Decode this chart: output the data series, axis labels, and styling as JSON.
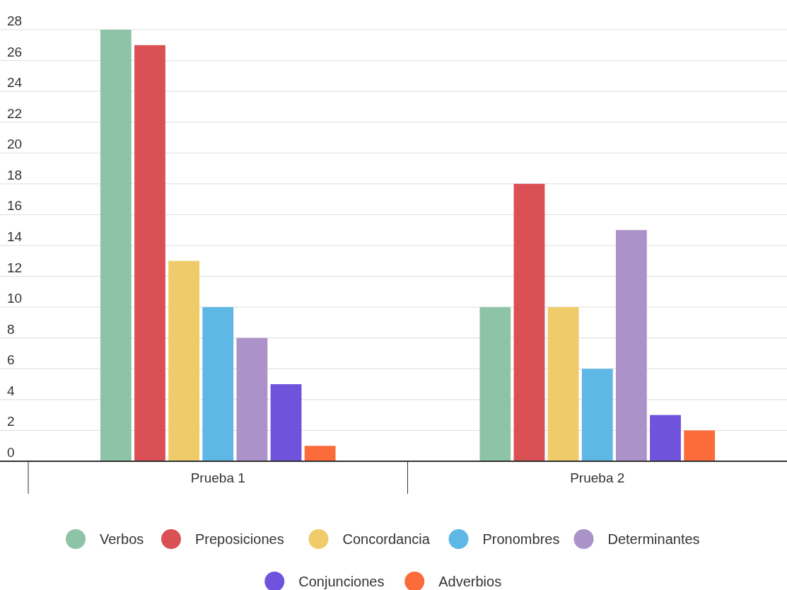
{
  "chart_data": {
    "type": "bar",
    "categories": [
      "Prueba 1",
      "Prueba 2"
    ],
    "series": [
      {
        "name": "Verbos",
        "color": "#8dc3a7",
        "values": [
          28,
          10
        ]
      },
      {
        "name": "Preposiciones",
        "color": "#db5054",
        "values": [
          27,
          18
        ]
      },
      {
        "name": "Concordancia",
        "color": "#f0cb69",
        "values": [
          13,
          10
        ]
      },
      {
        "name": "Pronombres",
        "color": "#5fb7e5",
        "values": [
          10,
          6
        ]
      },
      {
        "name": "Determinantes",
        "color": "#ab92c8",
        "values": [
          8,
          15
        ]
      },
      {
        "name": "Conjunciones",
        "color": "#6f53dc",
        "values": [
          5,
          3
        ]
      },
      {
        "name": "Adverbios",
        "color": "#fc6b3a",
        "values": [
          1,
          2
        ]
      }
    ],
    "ylim": [
      0,
      28
    ],
    "yticks": [
      0,
      2,
      4,
      6,
      8,
      10,
      12,
      14,
      16,
      18,
      20,
      22,
      24,
      26,
      28
    ],
    "grid": "y",
    "legend": "bottom"
  }
}
